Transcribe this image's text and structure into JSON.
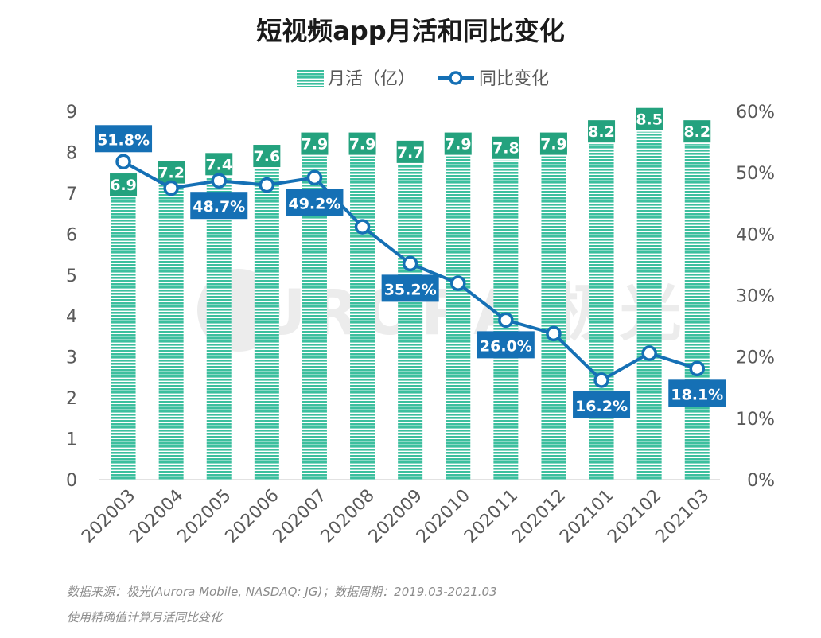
{
  "colors": {
    "bar": "#3cbf9e",
    "bar_stripe": "#ffffff",
    "bar_label_bg": "#24a27e",
    "line": "#1570b5",
    "line_label_bg": "#1570b5",
    "axis_text": "#595959",
    "title_text": "#1a1a1a",
    "source_text": "#8c8c8c",
    "watermark": "#ececec"
  },
  "watermark": "AURORA 极光",
  "chart_data": {
    "type": "bar",
    "title": "短视频app月活和同比变化",
    "legend_position": "top",
    "categories": [
      "202003",
      "202004",
      "202005",
      "202006",
      "202007",
      "202008",
      "202009",
      "202010",
      "202011",
      "202012",
      "202101",
      "202102",
      "202103"
    ],
    "series": [
      {
        "name": "月活（亿）",
        "type": "bar",
        "axis": "left",
        "values": [
          6.9,
          7.2,
          7.4,
          7.6,
          7.9,
          7.9,
          7.7,
          7.9,
          7.8,
          7.9,
          8.2,
          8.5,
          8.2
        ],
        "labels": [
          "6.9",
          "7.2",
          "7.4",
          "7.6",
          "7.9",
          "7.9",
          "7.7",
          "7.9",
          "7.8",
          "7.9",
          "8.2",
          "8.5",
          "8.2"
        ]
      },
      {
        "name": "同比变化",
        "type": "line",
        "axis": "right",
        "values": [
          51.8,
          47.5,
          48.7,
          48.0,
          49.2,
          41.2,
          35.2,
          32.0,
          26.0,
          23.8,
          16.2,
          20.6,
          18.1
        ],
        "labels": [
          "51.8%",
          "",
          "48.7%",
          "",
          "49.2%",
          "",
          "35.2%",
          "",
          "26.0%",
          "",
          "16.2%",
          "",
          "18.1%"
        ]
      }
    ],
    "y_left": {
      "ylim": [
        0,
        9
      ],
      "ticks": [
        "0",
        "1",
        "2",
        "3",
        "4",
        "5",
        "6",
        "7",
        "8",
        "9"
      ]
    },
    "y_right": {
      "ylim": [
        0,
        60
      ],
      "ticks": [
        "0%",
        "10%",
        "20%",
        "30%",
        "40%",
        "50%",
        "60%"
      ]
    },
    "grid": false
  },
  "source": {
    "line1": "数据来源：极光(Aurora Mobile, NASDAQ: JG)；数据周期：2019.03-2021.03",
    "line2": "使用精确值计算月活同比变化"
  }
}
